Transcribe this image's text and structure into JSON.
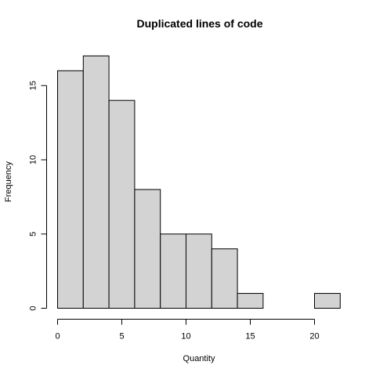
{
  "chart_data": {
    "type": "bar",
    "title": "Duplicated lines of code",
    "xlabel": "Quantity",
    "ylabel": "Frequency",
    "bins": [
      {
        "from": 0,
        "to": 2,
        "count": 16
      },
      {
        "from": 2,
        "to": 4,
        "count": 17
      },
      {
        "from": 4,
        "to": 6,
        "count": 14
      },
      {
        "from": 6,
        "to": 8,
        "count": 8
      },
      {
        "from": 8,
        "to": 10,
        "count": 5
      },
      {
        "from": 10,
        "to": 12,
        "count": 5
      },
      {
        "from": 12,
        "to": 14,
        "count": 4
      },
      {
        "from": 14,
        "to": 16,
        "count": 1
      },
      {
        "from": 16,
        "to": 18,
        "count": 0
      },
      {
        "from": 18,
        "to": 20,
        "count": 0
      },
      {
        "from": 20,
        "to": 22,
        "count": 1
      }
    ],
    "xticks": [
      0,
      5,
      10,
      15,
      20
    ],
    "yticks": [
      0,
      5,
      10,
      15
    ],
    "xlim": [
      0,
      22
    ],
    "ylim": [
      0,
      17
    ],
    "bar_color": "#d3d3d3",
    "grid": false
  }
}
